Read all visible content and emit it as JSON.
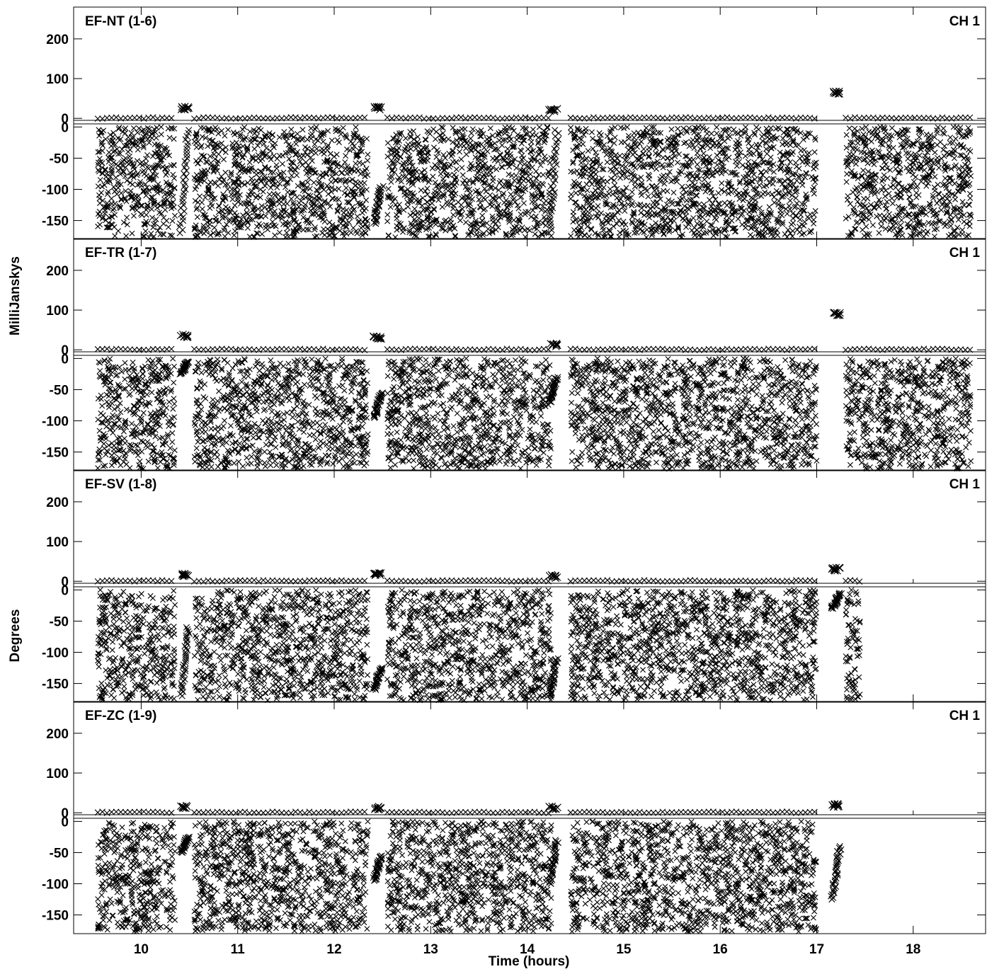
{
  "chart_data": {
    "type": "scatter",
    "xlabel": "Time (hours)",
    "ylabel_top": "MilliJanskys",
    "ylabel_bottom": "Degrees",
    "channel_label": "CH 1",
    "xlim": [
      9.3,
      18.75
    ],
    "x_ticks": [
      10,
      11,
      12,
      13,
      14,
      15,
      16,
      17,
      18
    ],
    "amplitude_ylim": [
      -5,
      280
    ],
    "phase_ylim": [
      -180,
      5
    ],
    "amplitude_ticks": [
      0,
      100,
      200
    ],
    "phase_ticks": [
      0,
      -50,
      -100,
      -150
    ],
    "marker": "cross",
    "color": "#000000",
    "scans": [
      {
        "start": 9.55,
        "end": 10.35
      },
      {
        "start": 10.55,
        "end": 12.35
      },
      {
        "start": 12.55,
        "end": 14.25
      },
      {
        "start": 14.45,
        "end": 17.0
      },
      {
        "start": 17.3,
        "end": 18.6
      }
    ],
    "panels": [
      {
        "name": "EF-NT (1-6)",
        "amplitude_base": 1,
        "calibrators": [
          {
            "x": 10.45,
            "amp": 25,
            "phase": [
              -170,
              -5
            ]
          },
          {
            "x": 12.45,
            "amp": 25,
            "phase": [
              -155,
              -95
            ]
          },
          {
            "x": 14.27,
            "amp": 20,
            "phase": [
              -170,
              -5
            ]
          },
          {
            "x": 17.2,
            "amp": 65,
            "phase": []
          }
        ],
        "last_scan_end": 18.6
      },
      {
        "name": "EF-TR (1-7)",
        "amplitude_base": 1,
        "calibrators": [
          {
            "x": 10.45,
            "amp": 35,
            "phase": [
              -25,
              -5
            ]
          },
          {
            "x": 12.45,
            "amp": 32,
            "phase": [
              -95,
              -55
            ]
          },
          {
            "x": 14.27,
            "amp": 12,
            "phase": [
              -70,
              -30
            ]
          },
          {
            "x": 17.2,
            "amp": 90,
            "phase": []
          }
        ],
        "last_scan_end": 18.6
      },
      {
        "name": "EF-SV (1-8)",
        "amplitude_base": 1,
        "calibrators": [
          {
            "x": 10.45,
            "amp": 15,
            "phase": [
              -170,
              -60
            ]
          },
          {
            "x": 12.45,
            "amp": 18,
            "phase": [
              -160,
              -125
            ]
          },
          {
            "x": 14.27,
            "amp": 12,
            "phase": [
              -170,
              -110
            ]
          },
          {
            "x": 17.2,
            "amp": 30,
            "phase": [
              -30,
              -5
            ]
          }
        ],
        "last_scan_end": 17.45
      },
      {
        "name": "EF-ZC (1-9)",
        "amplitude_base": 1,
        "calibrators": [
          {
            "x": 10.45,
            "amp": 15,
            "phase": [
              -50,
              -25
            ]
          },
          {
            "x": 12.45,
            "amp": 12,
            "phase": [
              -95,
              -55
            ]
          },
          {
            "x": 14.27,
            "amp": 12,
            "phase": [
              -100,
              -30
            ]
          },
          {
            "x": 17.2,
            "amp": 18,
            "phase": [
              -125,
              -40
            ]
          }
        ],
        "last_scan_end": 17.0
      }
    ]
  }
}
